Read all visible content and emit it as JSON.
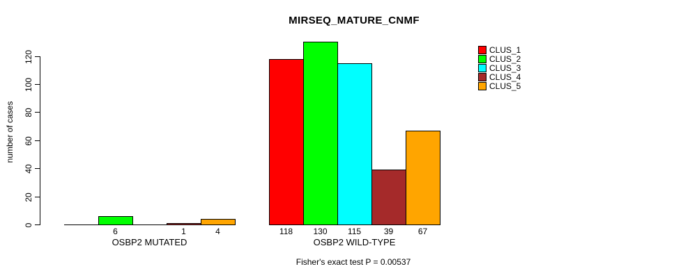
{
  "title": "MIRSEQ_MATURE_CNMF",
  "colors": {
    "background": "#FFFFFF",
    "axis": "#000000",
    "text": "#000000",
    "clus_1": "#FF0000",
    "clus_2": "#00FF00",
    "clus_3": "#00FFFF",
    "clus_4": "#A52A2A",
    "clus_5": "#FFA500"
  },
  "chart_data": {
    "type": "bar",
    "title": "MIRSEQ_MATURE_CNMF",
    "xlabel": "",
    "ylabel": "number of cases",
    "ylim": [
      0,
      130
    ],
    "yticks": [
      0,
      20,
      40,
      60,
      80,
      100,
      120
    ],
    "grid": false,
    "legend_position": "top-right",
    "categories": [
      "OSBP2 MUTATED",
      "OSBP2 WILD-TYPE"
    ],
    "series": [
      {
        "name": "CLUS_1",
        "color": "#FF0000",
        "values": [
          0,
          118
        ]
      },
      {
        "name": "CLUS_2",
        "color": "#00FF00",
        "values": [
          6,
          130
        ]
      },
      {
        "name": "CLUS_3",
        "color": "#00FFFF",
        "values": [
          0,
          115
        ]
      },
      {
        "name": "CLUS_4",
        "color": "#A52A2A",
        "values": [
          1,
          39
        ]
      },
      {
        "name": "CLUS_5",
        "color": "#FFA500",
        "values": [
          4,
          67
        ]
      }
    ],
    "bar_value_labels": [
      [
        "",
        "6",
        "",
        "1",
        "4"
      ],
      [
        "118",
        "130",
        "115",
        "39",
        "67"
      ]
    ],
    "annotation": "Fisher's exact test P = 0.00537"
  }
}
